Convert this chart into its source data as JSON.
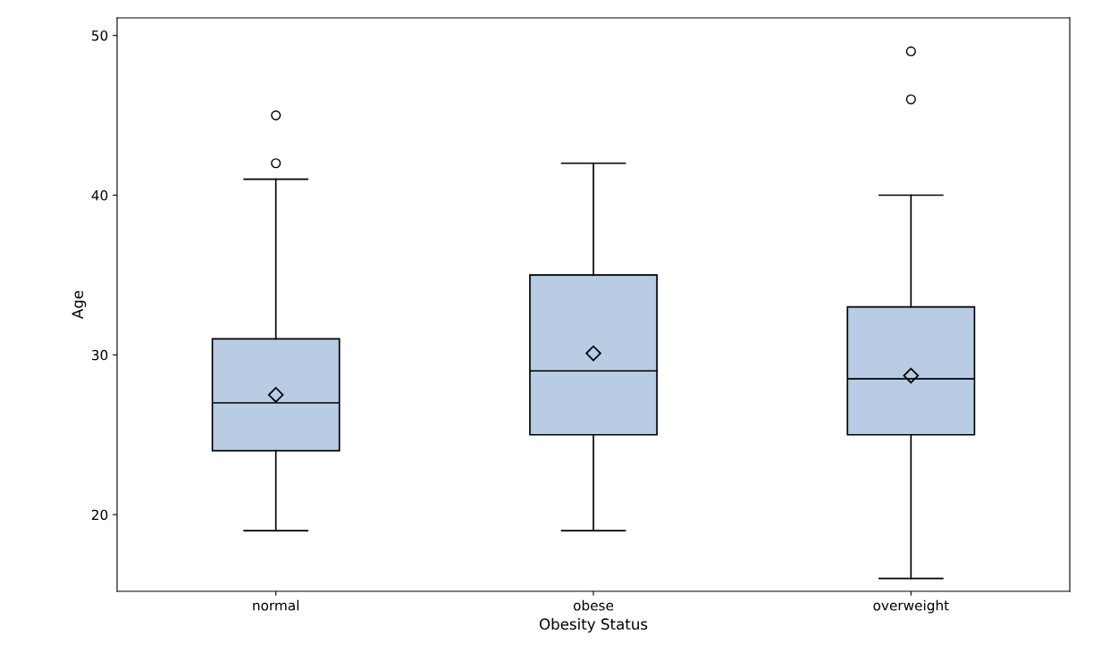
{
  "chart_data": {
    "type": "box",
    "xlabel": "Obesity Status",
    "ylabel": "Age",
    "categories": [
      "normal",
      "obese",
      "overweight"
    ],
    "color": "#b8cce4",
    "boxes": [
      {
        "low": 19,
        "q1": 24,
        "median": 27,
        "q3": 31,
        "high": 41,
        "mean": 27.5,
        "outliers": [
          42,
          45
        ]
      },
      {
        "low": 19,
        "q1": 25,
        "median": 29,
        "q3": 35,
        "high": 42,
        "mean": 30.1
      },
      {
        "low": 16,
        "q1": 25,
        "median": 28.5,
        "q3": 33,
        "high": 40,
        "mean": 28.7,
        "outliers": [
          46,
          49
        ]
      }
    ],
    "ylim": [
      15.2,
      51.1
    ],
    "yticks": [
      20,
      30,
      40,
      50
    ],
    "grid": false
  }
}
